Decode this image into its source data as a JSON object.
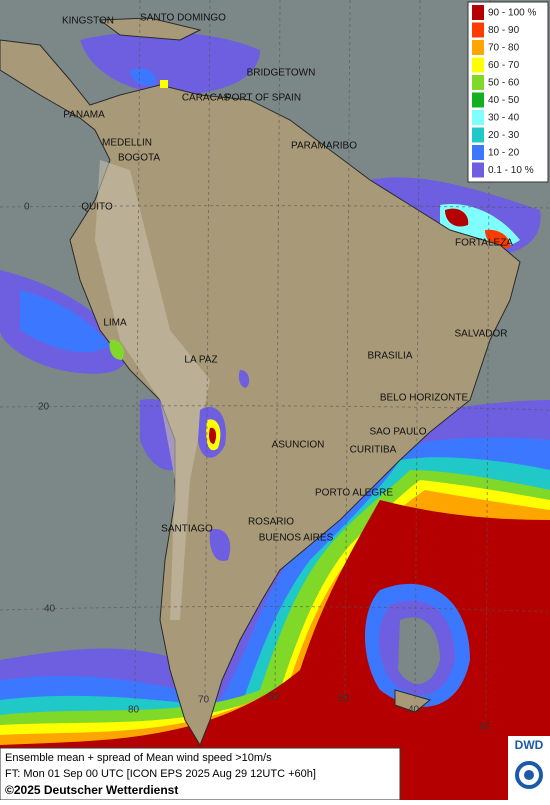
{
  "map": {
    "cities": [
      "KINGSTON",
      "SANTO DOMINGO",
      "BRIDGETOWN",
      "CARACAS",
      "PORT OF SPAIN",
      "PANAMA",
      "MEDELLIN",
      "BOGOTA",
      "PARAMARIBO",
      "QUITO",
      "FORTALEZA",
      "LIMA",
      "SALVADOR",
      "LA PAZ",
      "BRASILIA",
      "BELO HORIZONTE",
      "SAO PAULO",
      "ASUNCION",
      "CURITIBA",
      "PORTO ALEGRE",
      "ROSARIO",
      "BUENOS AIRES",
      "SANTIAGO"
    ],
    "grid_labels": [
      "0",
      "20",
      "40",
      "80",
      "70",
      "60",
      "50",
      "40",
      "30"
    ]
  },
  "legend": {
    "items": [
      {
        "label": "90 - 100 %",
        "color": "#b40000"
      },
      {
        "label": "80 - 90",
        "color": "#ff3c00"
      },
      {
        "label": "70 - 80",
        "color": "#ffa500"
      },
      {
        "label": "60 - 70",
        "color": "#ffff00"
      },
      {
        "label": "50 - 60",
        "color": "#80d828"
      },
      {
        "label": "40 - 50",
        "color": "#10b020"
      },
      {
        "label": "30 - 40",
        "color": "#80ffff"
      },
      {
        "label": "20 - 30",
        "color": "#20c8c8"
      },
      {
        "label": "10 - 20",
        "color": "#3c78ff"
      },
      {
        "label": "0.1 - 10 %",
        "color": "#6e5ee0"
      }
    ]
  },
  "footer": {
    "lines": [
      "Ensemble mean + spread of Mean wind speed >10m/s",
      "FT: Mon 01 Sep 00 UTC [ICON EPS 2025 Aug 29 12UTC +60h]"
    ],
    "copyright": "©2025 Deutscher Wetterdienst"
  },
  "logo": "DWD"
}
